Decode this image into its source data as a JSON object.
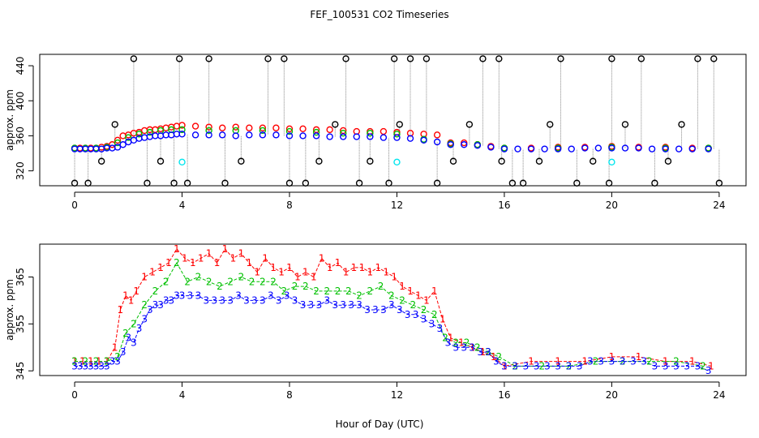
{
  "figure": {
    "title": "FEF_100531  CO2 Timeseries",
    "xlabel": "Hour of Day (UTC)"
  },
  "colors": {
    "level1": "#ff0000",
    "level2": "#00c000",
    "level3": "#0000ff",
    "flagged": "#000000",
    "reference": "#00e5ee",
    "connector": "#888888"
  },
  "chart_data": [
    {
      "type": "scatter",
      "name": "top-panel",
      "ylabel": "approx. ppm",
      "xlim": [
        -1.3,
        25
      ],
      "ylim": [
        303,
        453
      ],
      "xticks": [
        0,
        4,
        8,
        12,
        16,
        20,
        24
      ],
      "yticks": [
        320,
        360,
        400,
        440
      ],
      "series": [
        {
          "marker": "circle",
          "color": "#ff0000",
          "x": [
            0.0,
            0.2,
            0.4,
            0.6,
            0.8,
            1.0,
            1.2,
            1.4,
            1.6,
            1.8,
            2.0,
            2.2,
            2.4,
            2.6,
            2.8,
            3.0,
            3.2,
            3.4,
            3.6,
            3.8,
            4.0,
            4.5,
            5.0,
            5.5,
            6.0,
            6.5,
            7.0,
            7.5,
            8.0,
            8.5,
            9.0,
            9.5,
            10.0,
            10.5,
            11.0,
            11.5,
            12.0,
            12.5,
            13.0,
            13.5,
            14.0,
            14.5,
            15.0,
            15.5,
            16.0,
            17.0,
            18.0,
            19.0,
            20.0,
            21.0,
            22.0,
            23.0,
            23.6
          ],
          "y": [
            346,
            346,
            346,
            346,
            346,
            347,
            348,
            350,
            355,
            360,
            361,
            363,
            364,
            366,
            367,
            367,
            368,
            369,
            370,
            371,
            372,
            371,
            370,
            369,
            370,
            369,
            369,
            369,
            368,
            368,
            367,
            367,
            366,
            365,
            365,
            365,
            364,
            363,
            362,
            361,
            352,
            352,
            350,
            348,
            346,
            346,
            347,
            347,
            348,
            347,
            347,
            346,
            346
          ]
        },
        {
          "marker": "circle",
          "color": "#00c000",
          "x": [
            0.0,
            0.4,
            0.8,
            1.2,
            1.6,
            2.0,
            2.4,
            2.8,
            3.2,
            3.6,
            4.0,
            5.0,
            6.0,
            7.0,
            8.0,
            9.0,
            10.0,
            11.0,
            12.0,
            13.0,
            14.0,
            15.0,
            16.0,
            18.0,
            20.0,
            22.0,
            23.6
          ],
          "y": [
            346,
            346,
            346,
            347,
            352,
            358,
            362,
            364,
            366,
            367,
            367,
            366,
            366,
            366,
            365,
            364,
            363,
            363,
            362,
            356,
            351,
            350,
            346,
            346,
            347,
            346,
            346
          ]
        },
        {
          "marker": "circle",
          "color": "#0000ff",
          "x": [
            0.0,
            0.2,
            0.4,
            0.6,
            0.8,
            1.0,
            1.2,
            1.4,
            1.6,
            1.8,
            2.0,
            2.2,
            2.4,
            2.6,
            2.8,
            3.0,
            3.2,
            3.4,
            3.6,
            3.8,
            4.0,
            4.5,
            5.0,
            5.5,
            6.0,
            6.5,
            7.0,
            7.5,
            8.0,
            8.5,
            9.0,
            9.5,
            10.0,
            10.5,
            11.0,
            11.5,
            12.0,
            12.5,
            13.0,
            13.5,
            14.0,
            14.5,
            15.0,
            15.5,
            16.0,
            16.5,
            17.0,
            17.5,
            18.0,
            18.5,
            19.0,
            19.5,
            20.0,
            20.5,
            21.0,
            21.5,
            22.0,
            22.5,
            23.0,
            23.6
          ],
          "y": [
            345,
            345,
            345,
            345,
            345,
            345,
            346,
            346,
            347,
            350,
            353,
            355,
            357,
            358,
            359,
            360,
            360,
            361,
            361,
            362,
            362,
            361,
            361,
            361,
            360,
            361,
            361,
            361,
            360,
            360,
            360,
            359,
            359,
            359,
            359,
            358,
            358,
            357,
            355,
            353,
            350,
            350,
            349,
            347,
            345,
            345,
            345,
            345,
            345,
            345,
            346,
            346,
            346,
            346,
            346,
            345,
            345,
            345,
            345,
            345
          ]
        },
        {
          "marker": "circle",
          "color": "#000000",
          "x": [
            0.0,
            0.5,
            1.0,
            1.5,
            2.2,
            2.7,
            3.2,
            3.7,
            3.9,
            4.2,
            5.0,
            5.6,
            6.2,
            7.2,
            7.8,
            8.0,
            8.6,
            9.1,
            9.7,
            10.1,
            10.6,
            11.0,
            11.7,
            11.9,
            12.1,
            12.5,
            13.1,
            13.5,
            14.1,
            14.7,
            15.2,
            15.8,
            15.9,
            16.3,
            16.7,
            17.3,
            17.7,
            18.1,
            18.7,
            19.3,
            19.9,
            20.0,
            20.5,
            21.1,
            21.6,
            22.1,
            22.6,
            23.2,
            23.8,
            24.0
          ],
          "y": [
            306,
            306,
            331,
            373,
            448,
            306,
            331,
            306,
            448,
            306,
            448,
            306,
            331,
            448,
            448,
            306,
            306,
            331,
            373,
            448,
            306,
            331,
            306,
            448,
            373,
            448,
            448,
            306,
            331,
            373,
            448,
            448,
            331,
            306,
            306,
            331,
            373,
            448,
            306,
            331,
            306,
            448,
            373,
            448,
            306,
            331,
            373,
            448,
            448,
            306
          ]
        },
        {
          "marker": "circle",
          "color": "#00e5ee",
          "x": [
            4.0,
            12.0,
            20.0
          ],
          "y": [
            330,
            330,
            330
          ]
        }
      ]
    },
    {
      "type": "line",
      "name": "bottom-panel",
      "ylabel": "approx. ppm",
      "xlim": [
        -1.3,
        25
      ],
      "ylim": [
        344,
        372
      ],
      "xticks": [
        0,
        4,
        8,
        12,
        16,
        20,
        24
      ],
      "yticks": [
        345,
        355,
        365
      ],
      "series": [
        {
          "marker": "1",
          "color": "#ff0000",
          "x": [
            0.0,
            0.3,
            0.6,
            0.9,
            1.2,
            1.5,
            1.7,
            1.9,
            2.1,
            2.3,
            2.6,
            2.9,
            3.2,
            3.5,
            3.8,
            4.1,
            4.4,
            4.7,
            5.0,
            5.3,
            5.6,
            5.9,
            6.2,
            6.5,
            6.8,
            7.1,
            7.4,
            7.7,
            8.0,
            8.3,
            8.6,
            8.9,
            9.2,
            9.5,
            9.8,
            10.1,
            10.4,
            10.7,
            11.0,
            11.3,
            11.6,
            11.9,
            12.2,
            12.5,
            12.8,
            13.1,
            13.4,
            13.7,
            14.0,
            14.4,
            14.8,
            15.2,
            15.6,
            16.0,
            17.0,
            18.0,
            19.0,
            20.0,
            21.0,
            22.0,
            23.0,
            23.7
          ],
          "y": [
            347,
            347,
            347,
            347,
            347,
            350,
            358,
            361,
            360,
            362,
            365,
            366,
            367,
            368,
            371,
            369,
            368,
            369,
            370,
            368,
            371,
            369,
            370,
            368,
            366,
            369,
            367,
            366,
            367,
            365,
            366,
            365,
            369,
            367,
            368,
            366,
            367,
            367,
            366,
            367,
            366,
            365,
            363,
            362,
            361,
            360,
            362,
            356,
            352,
            351,
            350,
            349,
            348,
            346,
            347,
            347,
            347,
            348,
            348,
            347,
            347,
            346
          ]
        },
        {
          "marker": "2",
          "color": "#00c000",
          "x": [
            0.0,
            0.4,
            0.8,
            1.2,
            1.6,
            1.9,
            2.2,
            2.6,
            3.0,
            3.4,
            3.8,
            4.2,
            4.6,
            5.0,
            5.4,
            5.8,
            6.2,
            6.6,
            7.0,
            7.4,
            7.8,
            8.2,
            8.6,
            9.0,
            9.4,
            9.8,
            10.2,
            10.6,
            11.0,
            11.4,
            11.8,
            12.2,
            12.6,
            13.0,
            13.4,
            13.8,
            14.2,
            14.6,
            15.0,
            15.4,
            15.8,
            16.4,
            17.4,
            18.4,
            19.4,
            20.4,
            21.4,
            22.4,
            23.4
          ],
          "y": [
            347,
            347,
            347,
            347,
            348,
            353,
            355,
            359,
            362,
            364,
            368,
            364,
            365,
            364,
            363,
            364,
            365,
            364,
            364,
            364,
            362,
            363,
            363,
            362,
            362,
            362,
            362,
            361,
            362,
            363,
            361,
            360,
            359,
            358,
            357,
            352,
            351,
            351,
            350,
            349,
            348,
            346,
            346,
            346,
            347,
            347,
            347,
            347,
            346
          ]
        },
        {
          "marker": "3",
          "color": "#0000ff",
          "x": [
            0.0,
            0.2,
            0.4,
            0.6,
            0.8,
            1.0,
            1.2,
            1.4,
            1.6,
            1.8,
            2.0,
            2.2,
            2.4,
            2.6,
            2.8,
            3.0,
            3.2,
            3.4,
            3.6,
            3.8,
            4.0,
            4.3,
            4.6,
            4.9,
            5.2,
            5.5,
            5.8,
            6.1,
            6.4,
            6.7,
            7.0,
            7.3,
            7.6,
            7.9,
            8.2,
            8.5,
            8.8,
            9.1,
            9.4,
            9.7,
            10.0,
            10.3,
            10.6,
            10.9,
            11.2,
            11.5,
            11.8,
            12.1,
            12.4,
            12.7,
            13.0,
            13.3,
            13.6,
            13.9,
            14.2,
            14.5,
            14.8,
            15.1,
            15.4,
            15.7,
            16.0,
            16.4,
            16.8,
            17.2,
            17.6,
            18.0,
            18.4,
            18.8,
            19.2,
            19.6,
            20.0,
            20.4,
            20.8,
            21.2,
            21.6,
            22.0,
            22.4,
            22.8,
            23.2,
            23.6
          ],
          "y": [
            346,
            346,
            346,
            346,
            346,
            346,
            346,
            347,
            347,
            349,
            352,
            351,
            354,
            356,
            358,
            359,
            359,
            360,
            360,
            361,
            361,
            361,
            361,
            360,
            360,
            360,
            360,
            361,
            360,
            360,
            360,
            361,
            360,
            361,
            360,
            359,
            359,
            359,
            360,
            359,
            359,
            359,
            359,
            358,
            358,
            358,
            359,
            358,
            357,
            357,
            356,
            355,
            354,
            351,
            350,
            350,
            350,
            349,
            349,
            347,
            346,
            346,
            346,
            346,
            346,
            346,
            346,
            346,
            347,
            347,
            347,
            347,
            347,
            347,
            346,
            346,
            346,
            346,
            346,
            345
          ]
        }
      ]
    }
  ]
}
